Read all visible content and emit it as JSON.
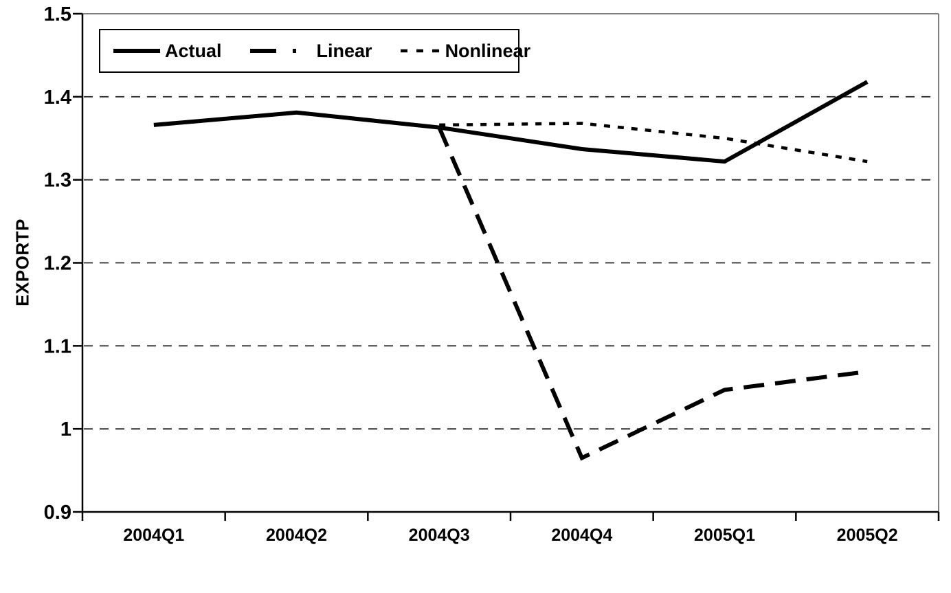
{
  "chart_data": {
    "type": "line",
    "title": "",
    "xlabel": "",
    "ylabel": "EXPORTP",
    "categories": [
      "2004Q1",
      "2004Q2",
      "2004Q3",
      "2004Q4",
      "2005Q1",
      "2005Q2"
    ],
    "series": [
      {
        "name": "Actual",
        "style": "solid",
        "stroke_width": 6,
        "values": [
          1.366,
          1.381,
          1.363,
          1.337,
          1.322,
          1.418
        ]
      },
      {
        "name": "Linear",
        "style": "long-dash",
        "stroke_width": 6,
        "values": [
          null,
          null,
          1.363,
          0.965,
          1.047,
          1.069
        ]
      },
      {
        "name": "Nonlinear",
        "style": "short-dash",
        "stroke_width": 4.5,
        "values": [
          null,
          null,
          1.366,
          1.368,
          1.35,
          1.322
        ]
      }
    ],
    "ylim": [
      0.9,
      1.5
    ],
    "yticks": [
      0.9,
      1.0,
      1.1,
      1.2,
      1.3,
      1.4,
      1.5
    ],
    "ytick_labels": [
      "0.9",
      "1",
      "1.1",
      "1.2",
      "1.3",
      "1.4",
      "1.5"
    ],
    "gridlines": [
      1.0,
      1.1,
      1.2,
      1.3,
      1.4
    ],
    "grid": "dashed-horizontal",
    "legend_position": "top-left-inside",
    "colors": {
      "line": "#000000",
      "grid": "#2a2a2a",
      "frame": "#7f7f7f",
      "axis": "#000000",
      "background": "#ffffff",
      "text": "#000000"
    }
  }
}
